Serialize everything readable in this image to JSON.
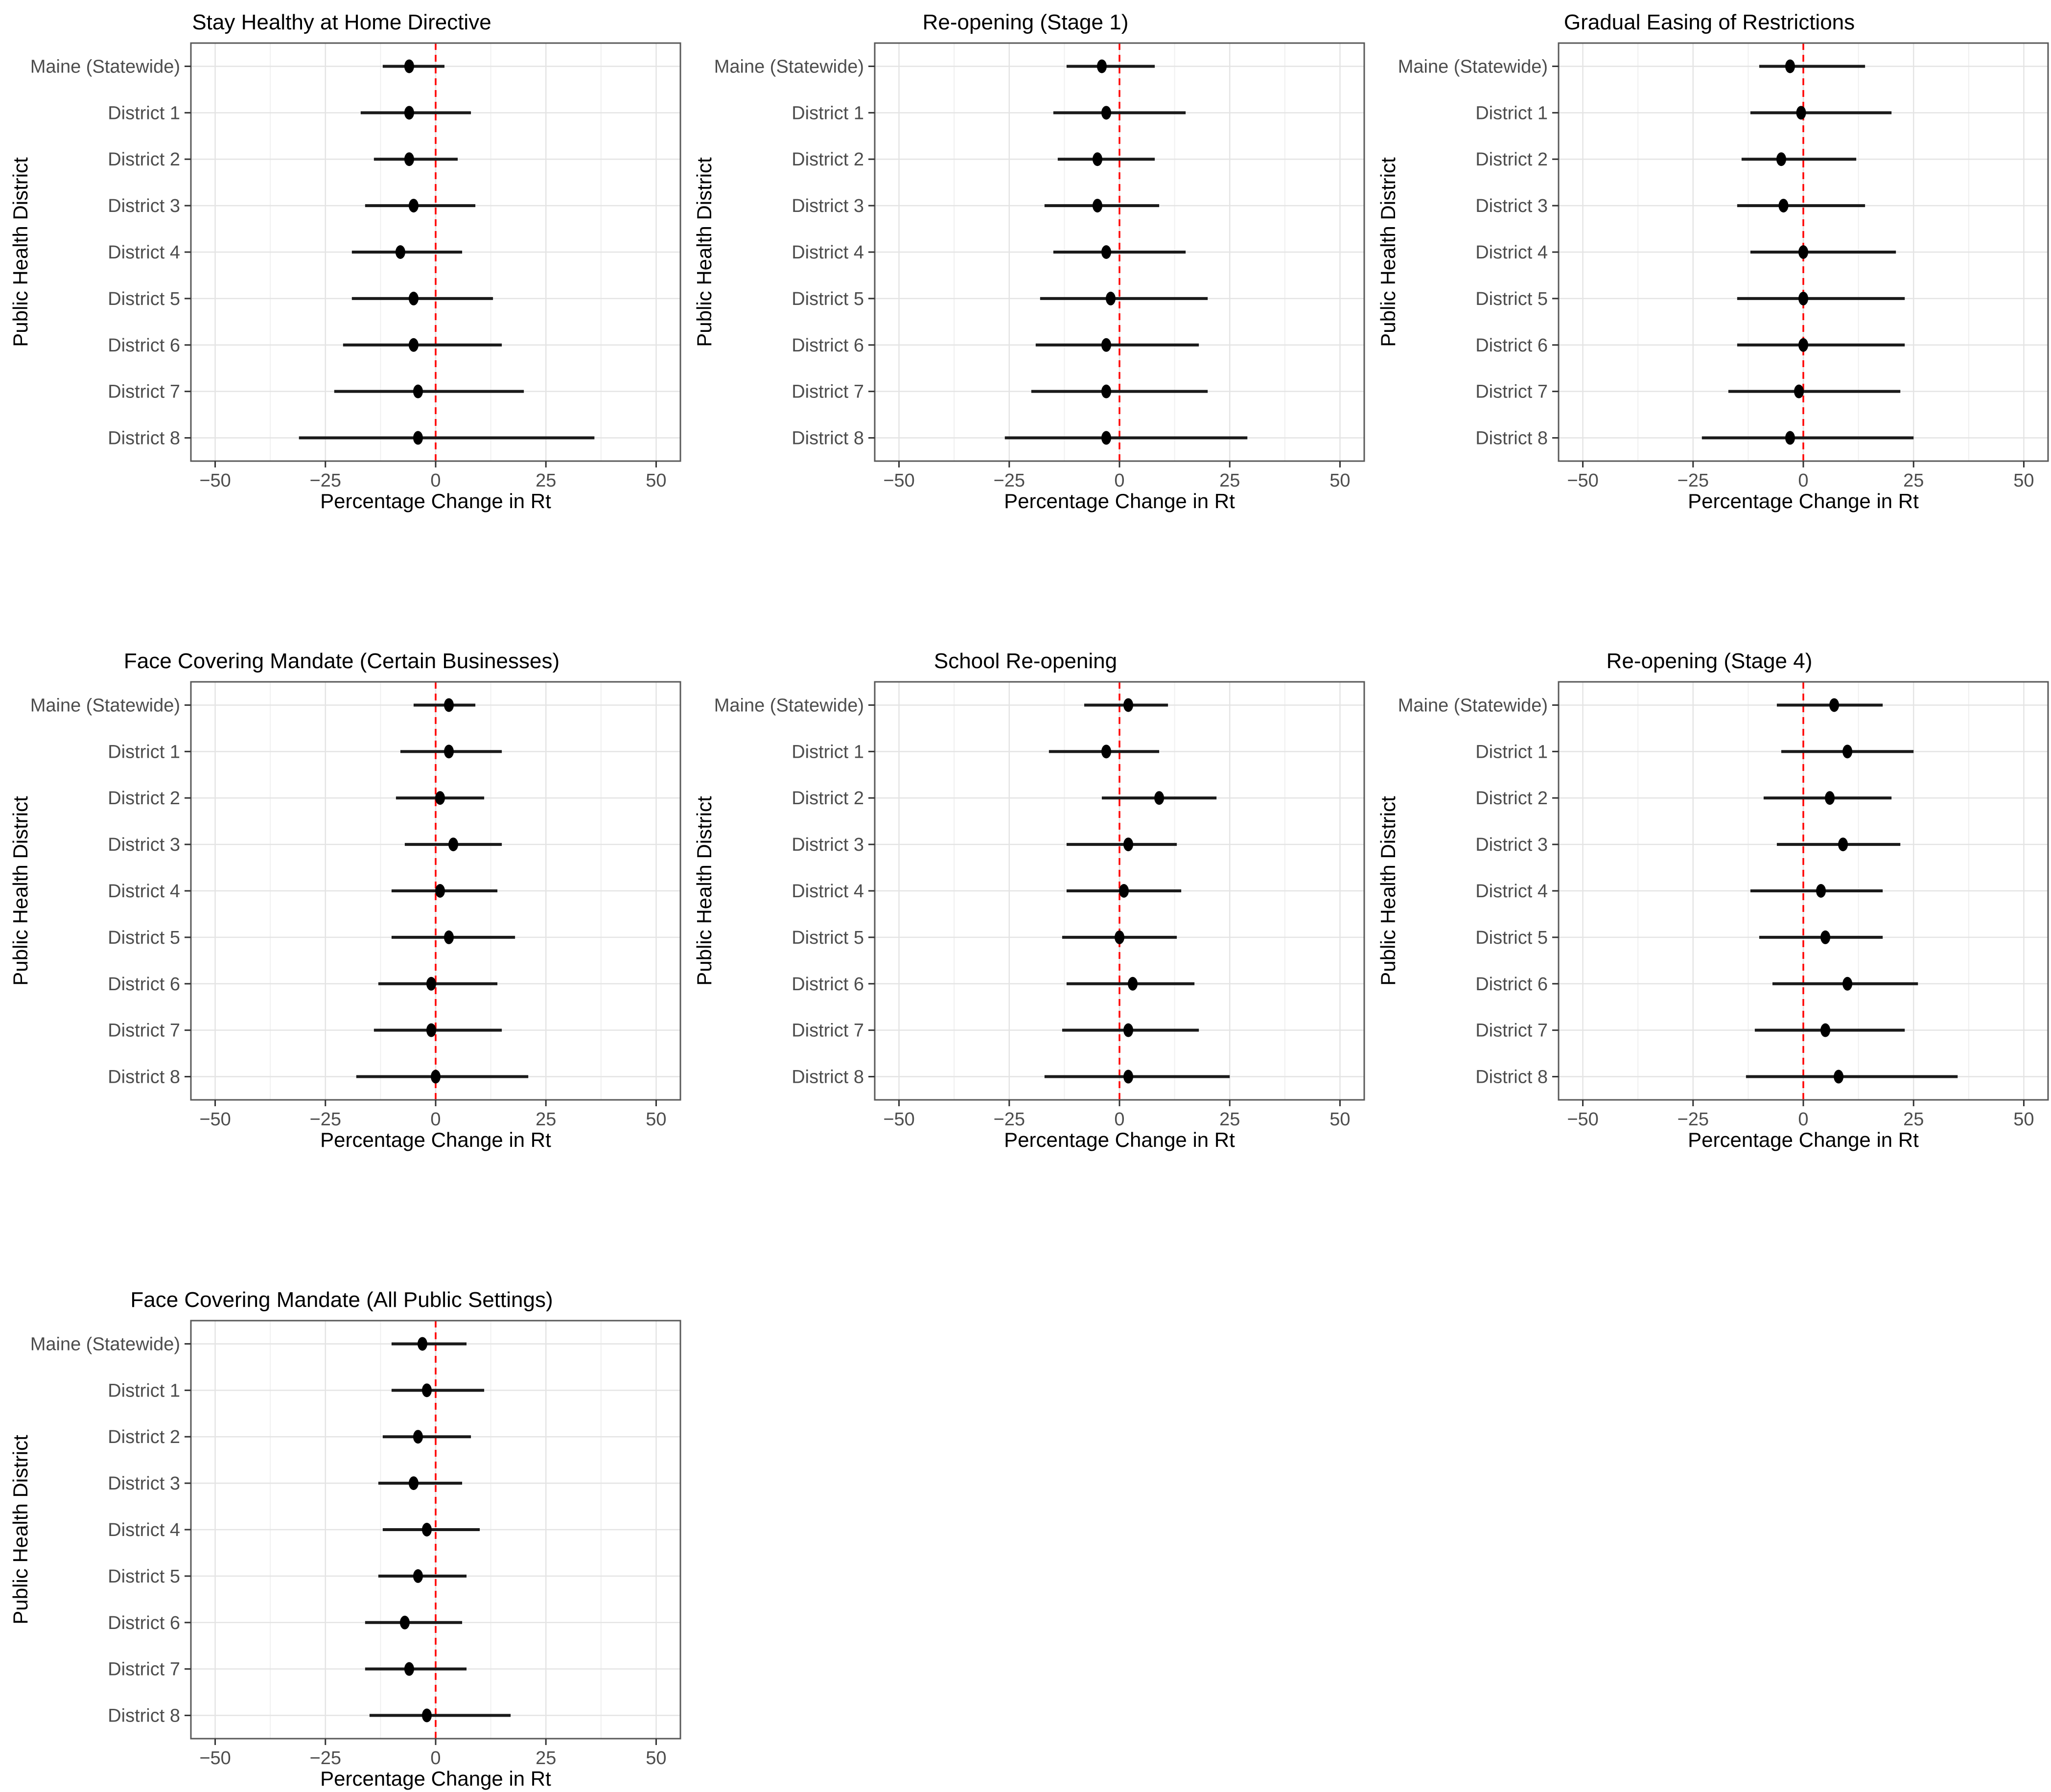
{
  "figure": {
    "xlabel": "Percentage Change in Rt",
    "ylabel": "Public Health District",
    "categories": [
      "Maine (Statewide)",
      "District 1",
      "District 2",
      "District 3",
      "District 4",
      "District 5",
      "District 6",
      "District 7",
      "District 8"
    ],
    "x_ticks": [
      "−50",
      "−25",
      "0",
      "25",
      "50"
    ],
    "x_tick_values": [
      -50,
      -25,
      0,
      25,
      50
    ],
    "x_minor_values": [
      -37.5,
      -12.5,
      12.5,
      37.5
    ],
    "xlim": [
      -55.5,
      55.5
    ],
    "refline": {
      "value": 0,
      "color": "#FF0000",
      "style": "dashed"
    },
    "grid_on": true,
    "legend": "none",
    "colors": {
      "point": "#000000",
      "interval": "#1A1A1A",
      "grid_major": "#E4E4E4",
      "grid_minor": "#F0F0F0",
      "panel_border": "#595959",
      "tick_mark": "#333333",
      "axis_text": "#4D4D4D",
      "title_text": "#000000",
      "background": "#FFFFFF"
    },
    "grid_layout": {
      "cols": 3,
      "rows": 3,
      "positions": [
        [
          0,
          0
        ],
        [
          0,
          1
        ],
        [
          0,
          2
        ],
        [
          1,
          0
        ],
        [
          1,
          1
        ],
        [
          1,
          2
        ],
        [
          2,
          0
        ]
      ]
    }
  },
  "chart_data": [
    {
      "type": "scatter",
      "subtype": "forest-pointrange",
      "error_bars": true,
      "title": "Stay Healthy at Home Directive",
      "xlabel": "Percentage Change in Rt",
      "ylabel": "Public Health District",
      "categories": [
        "Maine (Statewide)",
        "District 1",
        "District 2",
        "District 3",
        "District 4",
        "District 5",
        "District 6",
        "District 7",
        "District 8"
      ],
      "estimates": [
        -6,
        -6,
        -6,
        -5,
        -8,
        -5,
        -5,
        -4,
        -4
      ],
      "ci_lower": [
        -12,
        -17,
        -14,
        -16,
        -19,
        -19,
        -21,
        -23,
        -31
      ],
      "ci_upper": [
        2,
        8,
        5,
        9,
        6,
        13,
        15,
        20,
        36
      ]
    },
    {
      "type": "scatter",
      "subtype": "forest-pointrange",
      "error_bars": true,
      "title": "Re-opening (Stage 1)",
      "xlabel": "Percentage Change in Rt",
      "ylabel": "Public Health District",
      "categories": [
        "Maine (Statewide)",
        "District 1",
        "District 2",
        "District 3",
        "District 4",
        "District 5",
        "District 6",
        "District 7",
        "District 8"
      ],
      "estimates": [
        -4,
        -3,
        -5,
        -5,
        -3,
        -2,
        -3,
        -3,
        -3
      ],
      "ci_lower": [
        -12,
        -15,
        -14,
        -17,
        -15,
        -18,
        -19,
        -20,
        -26
      ],
      "ci_upper": [
        8,
        15,
        8,
        9,
        15,
        20,
        18,
        20,
        29
      ]
    },
    {
      "type": "scatter",
      "subtype": "forest-pointrange",
      "error_bars": true,
      "title": "Gradual Easing of Restrictions",
      "xlabel": "Percentage Change in Rt",
      "ylabel": "Public Health District",
      "categories": [
        "Maine (Statewide)",
        "District 1",
        "District 2",
        "District 3",
        "District 4",
        "District 5",
        "District 6",
        "District 7",
        "District 8"
      ],
      "estimates": [
        -3,
        -0.5,
        -5,
        -4.5,
        0,
        0,
        0,
        -1,
        -3
      ],
      "ci_lower": [
        -10,
        -12,
        -14,
        -15,
        -12,
        -15,
        -15,
        -17,
        -23
      ],
      "ci_upper": [
        14,
        20,
        12,
        14,
        21,
        23,
        23,
        22,
        25
      ]
    },
    {
      "type": "scatter",
      "subtype": "forest-pointrange",
      "error_bars": true,
      "title": "Face Covering Mandate (Certain Businesses)",
      "xlabel": "Percentage Change in Rt",
      "ylabel": "Public Health District",
      "categories": [
        "Maine (Statewide)",
        "District 1",
        "District 2",
        "District 3",
        "District 4",
        "District 5",
        "District 6",
        "District 7",
        "District 8"
      ],
      "estimates": [
        3,
        3,
        1,
        4,
        1,
        3,
        -1,
        -1,
        0
      ],
      "ci_lower": [
        -5,
        -8,
        -9,
        -7,
        -10,
        -10,
        -13,
        -14,
        -18
      ],
      "ci_upper": [
        9,
        15,
        11,
        15,
        14,
        18,
        14,
        15,
        21
      ]
    },
    {
      "type": "scatter",
      "subtype": "forest-pointrange",
      "error_bars": true,
      "title": "School Re-opening",
      "xlabel": "Percentage Change in Rt",
      "ylabel": "Public Health District",
      "categories": [
        "Maine (Statewide)",
        "District 1",
        "District 2",
        "District 3",
        "District 4",
        "District 5",
        "District 6",
        "District 7",
        "District 8"
      ],
      "estimates": [
        2,
        -3,
        9,
        2,
        1,
        0,
        3,
        2,
        2
      ],
      "ci_lower": [
        -8,
        -16,
        -4,
        -12,
        -12,
        -13,
        -12,
        -13,
        -17
      ],
      "ci_upper": [
        11,
        9,
        22,
        13,
        14,
        13,
        17,
        18,
        25
      ]
    },
    {
      "type": "scatter",
      "subtype": "forest-pointrange",
      "error_bars": true,
      "title": "Re-opening (Stage 4)",
      "xlabel": "Percentage Change in Rt",
      "ylabel": "Public Health District",
      "categories": [
        "Maine (Statewide)",
        "District 1",
        "District 2",
        "District 3",
        "District 4",
        "District 5",
        "District 6",
        "District 7",
        "District 8"
      ],
      "estimates": [
        7,
        10,
        6,
        9,
        4,
        5,
        10,
        5,
        8
      ],
      "ci_lower": [
        -6,
        -5,
        -9,
        -6,
        -12,
        -10,
        -7,
        -11,
        -13
      ],
      "ci_upper": [
        18,
        25,
        20,
        22,
        18,
        18,
        26,
        23,
        35
      ]
    },
    {
      "type": "scatter",
      "subtype": "forest-pointrange",
      "error_bars": true,
      "title": "Face Covering Mandate (All Public Settings)",
      "xlabel": "Percentage Change in Rt",
      "ylabel": "Public Health District",
      "categories": [
        "Maine (Statewide)",
        "District 1",
        "District 2",
        "District 3",
        "District 4",
        "District 5",
        "District 6",
        "District 7",
        "District 8"
      ],
      "estimates": [
        -3,
        -2,
        -4,
        -5,
        -2,
        -4,
        -7,
        -6,
        -2
      ],
      "ci_lower": [
        -10,
        -10,
        -12,
        -13,
        -12,
        -13,
        -16,
        -16,
        -15
      ],
      "ci_upper": [
        7,
        11,
        8,
        6,
        10,
        7,
        6,
        7,
        17
      ]
    }
  ]
}
